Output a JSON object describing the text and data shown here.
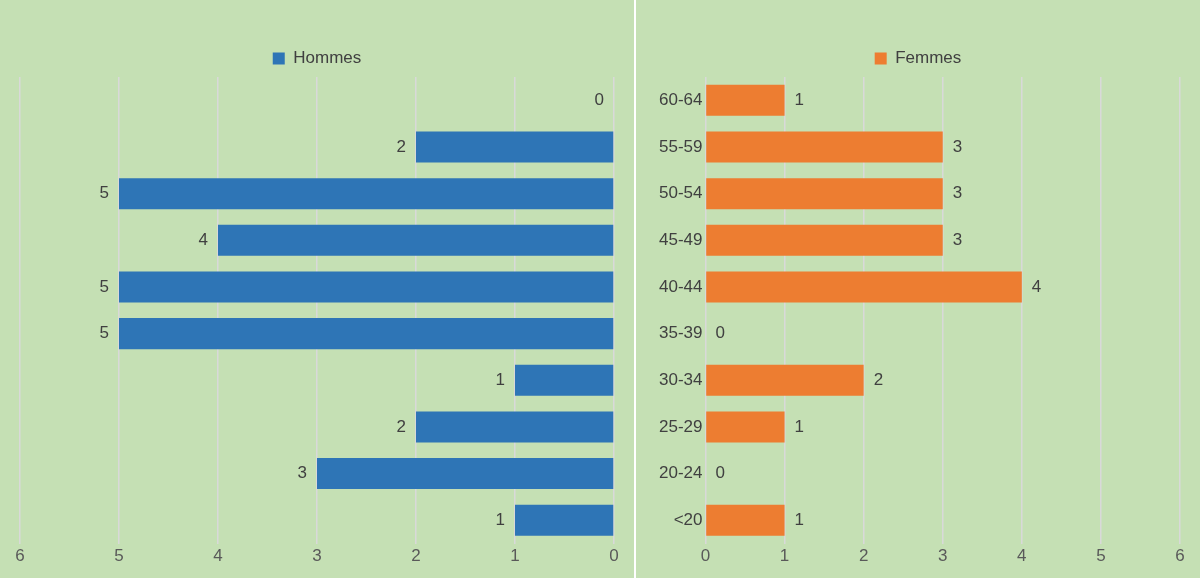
{
  "chart_data": [
    {
      "type": "bar",
      "orientation": "horizontal",
      "categories": [
        null,
        null,
        null,
        null,
        null,
        null,
        null,
        null,
        null,
        null
      ],
      "series": [
        {
          "name": "Hommes",
          "color": "#2e75b6",
          "values": [
            0,
            2,
            5,
            4,
            5,
            5,
            1,
            2,
            3,
            1
          ]
        }
      ],
      "xlim": [
        6,
        0
      ],
      "xticks": [
        6,
        5,
        4,
        3,
        2,
        1,
        0
      ],
      "grid": "x",
      "legend": "top",
      "data_labels": true,
      "tick_labels": "x"
    },
    {
      "type": "bar",
      "orientation": "horizontal",
      "categories": [
        "60-64",
        "55-59",
        "50-54",
        "45-49",
        "40-44",
        "35-39",
        "30-34",
        "25-29",
        "20-24",
        "<20"
      ],
      "series": [
        {
          "name": "Femmes",
          "color": "#ed7d31",
          "values": [
            1,
            3,
            3,
            3,
            4,
            0,
            2,
            1,
            0,
            1
          ]
        }
      ],
      "xlim": [
        0,
        6
      ],
      "xticks": [
        0,
        1,
        2,
        3,
        4,
        5,
        6
      ],
      "grid": "x",
      "legend": "top",
      "data_labels": true
    }
  ]
}
